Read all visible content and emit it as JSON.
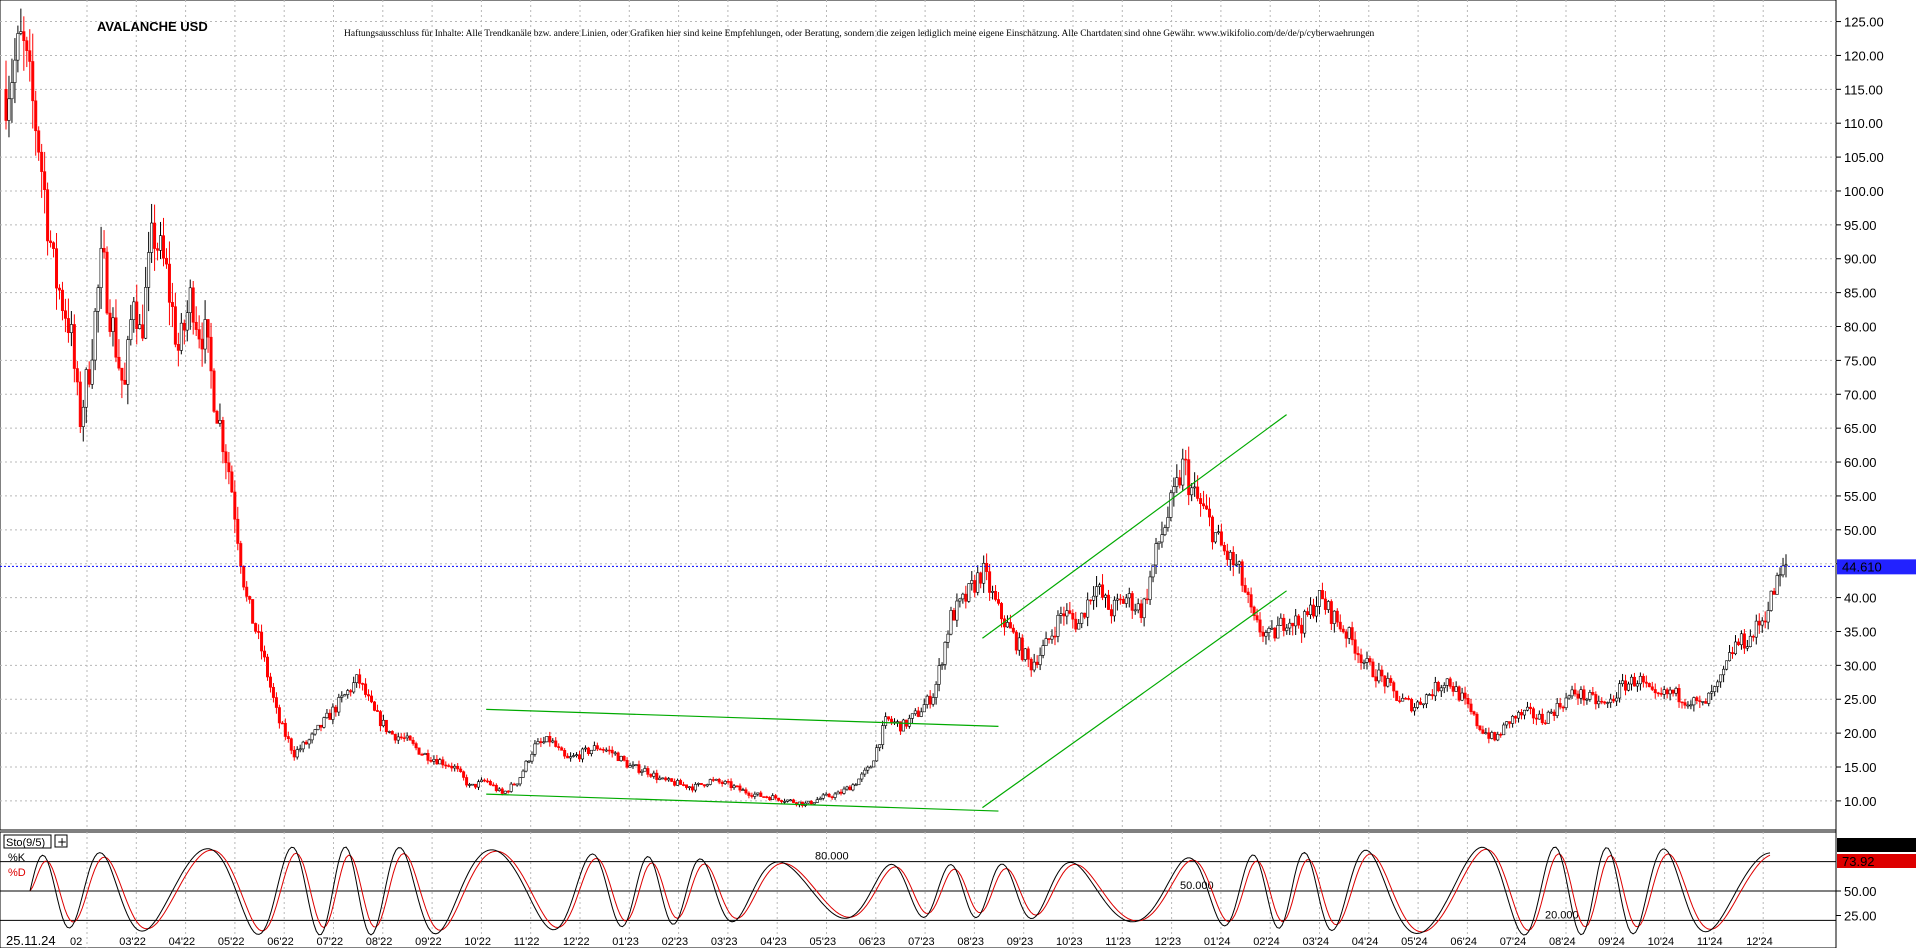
{
  "chart_data": {
    "type": "candlestick",
    "title": "AVALANCHE USD",
    "disclaimer": "Haftungsausschluss für Inhalte: Alle Trendkanäle bzw. andere Linien, oder Grafiken hier sind keine Empfehlungen, oder Beratung, sondern die zeigen lediglich meine eigene Einschätzung. Alle Chartdaten sind ohne Gewähr.  www.wikifolio.com/de/de/p/cyberwaehrungen",
    "date_label": "25.11.24",
    "ylim": [
      6,
      127
    ],
    "yticks": [
      "125.00",
      "120.00",
      "115.00",
      "110.00",
      "105.00",
      "100.00",
      "95.00",
      "90.00",
      "85.00",
      "80.00",
      "75.00",
      "70.00",
      "65.00",
      "60.00",
      "55.00",
      "50.00",
      "45.00",
      "40.00",
      "35.00",
      "30.00",
      "25.00",
      "20.00",
      "15.00",
      "10.00"
    ],
    "xtick_labels": [
      "02",
      "03'22",
      "04'22",
      "05'22",
      "06'22",
      "07'22",
      "08'22",
      "09'22",
      "10'22",
      "11'22",
      "12'22",
      "01'23",
      "02'23",
      "03'23",
      "04'23",
      "05'23",
      "06'23",
      "07'23",
      "08'23",
      "09'23",
      "10'23",
      "11'23",
      "12'23",
      "01'24",
      "02'24",
      "03'24",
      "04'24",
      "05'24",
      "06'24",
      "07'24",
      "08'24",
      "09'24",
      "10'24",
      "11'24",
      "12'24"
    ],
    "price_path": [
      [
        0,
        115
      ],
      [
        0.5,
        122
      ],
      [
        1,
        108
      ],
      [
        1.5,
        88
      ],
      [
        2,
        80
      ],
      [
        2.3,
        66
      ],
      [
        2.6,
        74
      ],
      [
        3,
        90
      ],
      [
        3.4,
        78
      ],
      [
        3.7,
        70
      ],
      [
        4,
        86
      ],
      [
        4.2,
        78
      ],
      [
        4.6,
        94
      ],
      [
        5,
        88
      ],
      [
        5.4,
        76
      ],
      [
        5.8,
        85
      ],
      [
        6,
        80
      ],
      [
        6.2,
        79
      ],
      [
        6.5,
        70
      ],
      [
        7,
        58
      ],
      [
        7.5,
        40
      ],
      [
        8,
        32
      ],
      [
        8.5,
        22
      ],
      [
        9,
        17
      ],
      [
        9.5,
        19
      ],
      [
        10,
        22
      ],
      [
        10.5,
        25
      ],
      [
        11,
        28
      ],
      [
        11.5,
        23
      ],
      [
        12,
        20
      ],
      [
        12.5,
        19
      ],
      [
        13,
        17
      ],
      [
        13.5,
        16
      ],
      [
        14,
        15
      ],
      [
        14.5,
        12
      ],
      [
        15,
        13
      ],
      [
        15.5,
        11
      ],
      [
        16,
        13
      ],
      [
        16.5,
        18
      ],
      [
        17,
        19
      ],
      [
        17.5,
        16
      ],
      [
        18,
        17
      ],
      [
        18.5,
        18
      ],
      [
        19,
        17
      ],
      [
        19.5,
        15
      ],
      [
        20,
        14.5
      ],
      [
        20.5,
        13
      ],
      [
        21,
        12.5
      ],
      [
        21.5,
        12
      ],
      [
        22,
        13
      ],
      [
        22.5,
        12.5
      ],
      [
        23,
        11.5
      ],
      [
        23.5,
        10.8
      ],
      [
        24,
        10.5
      ],
      [
        24.5,
        10
      ],
      [
        25,
        9.5
      ],
      [
        25.5,
        10.5
      ],
      [
        26,
        11
      ],
      [
        26.5,
        12.5
      ],
      [
        27,
        15
      ],
      [
        27.5,
        22
      ],
      [
        28,
        21
      ],
      [
        28.5,
        23
      ],
      [
        29,
        26
      ],
      [
        29.5,
        37
      ],
      [
        30,
        40
      ],
      [
        30.5,
        44
      ],
      [
        31,
        38
      ],
      [
        31.5,
        34
      ],
      [
        32,
        30
      ],
      [
        32.5,
        33
      ],
      [
        33,
        38
      ],
      [
        33.5,
        36
      ],
      [
        34,
        42
      ],
      [
        34.5,
        38
      ],
      [
        35,
        40
      ],
      [
        35.5,
        38
      ],
      [
        36,
        48
      ],
      [
        36.5,
        55
      ],
      [
        36.8,
        60
      ],
      [
        37,
        56
      ],
      [
        37.5,
        52
      ],
      [
        38,
        47
      ],
      [
        38.5,
        44
      ],
      [
        39,
        36
      ],
      [
        39.5,
        34
      ],
      [
        40,
        37
      ],
      [
        40.5,
        36
      ],
      [
        41,
        40
      ],
      [
        41.5,
        37
      ],
      [
        42,
        34
      ],
      [
        42.5,
        30
      ],
      [
        43,
        28
      ],
      [
        43.5,
        25
      ],
      [
        44,
        24
      ],
      [
        44.5,
        26
      ],
      [
        45,
        28
      ],
      [
        45.5,
        25
      ],
      [
        46,
        21
      ],
      [
        46.5,
        19
      ],
      [
        47,
        22
      ],
      [
        47.5,
        23
      ],
      [
        48,
        22
      ],
      [
        48.5,
        24
      ],
      [
        49,
        26
      ],
      [
        49.5,
        25
      ],
      [
        50,
        24
      ],
      [
        50.5,
        27
      ],
      [
        51,
        28
      ],
      [
        51.5,
        25
      ],
      [
        52,
        26
      ],
      [
        52.5,
        25
      ],
      [
        53,
        24
      ],
      [
        53.5,
        27
      ],
      [
        54,
        33
      ],
      [
        54.5,
        34
      ],
      [
        55,
        38
      ],
      [
        55.3,
        42
      ],
      [
        55.6,
        44.6
      ]
    ],
    "reference_line": 44.61,
    "last_price_label": "44.610",
    "trendlines": [
      {
        "from": [
          15,
          23.5
        ],
        "to": [
          31,
          21
        ],
        "color": "#00aa00"
      },
      {
        "from": [
          15,
          11
        ],
        "to": [
          31,
          8.5
        ],
        "color": "#00aa00"
      },
      {
        "from": [
          30.5,
          34
        ],
        "to": [
          40,
          67
        ],
        "color": "#00aa00"
      },
      {
        "from": [
          30.5,
          9
        ],
        "to": [
          40,
          41
        ],
        "color": "#00aa00"
      }
    ],
    "indicator": {
      "label": "Sto(9/5)",
      "series": [
        {
          "name": "%K",
          "color": "#000000",
          "last": 79.61,
          "last_label": "79.61"
        },
        {
          "name": "%D",
          "color": "#dd0000",
          "last": 73.92,
          "last_label": "73.92"
        }
      ],
      "ylim": [
        0,
        100
      ],
      "yticks": [
        "50.00",
        "25.00"
      ],
      "levels": [
        {
          "value": 80,
          "label": "80.000"
        },
        {
          "value": 50,
          "label": "50.000"
        },
        {
          "value": 20,
          "label": "20.000"
        }
      ]
    }
  }
}
